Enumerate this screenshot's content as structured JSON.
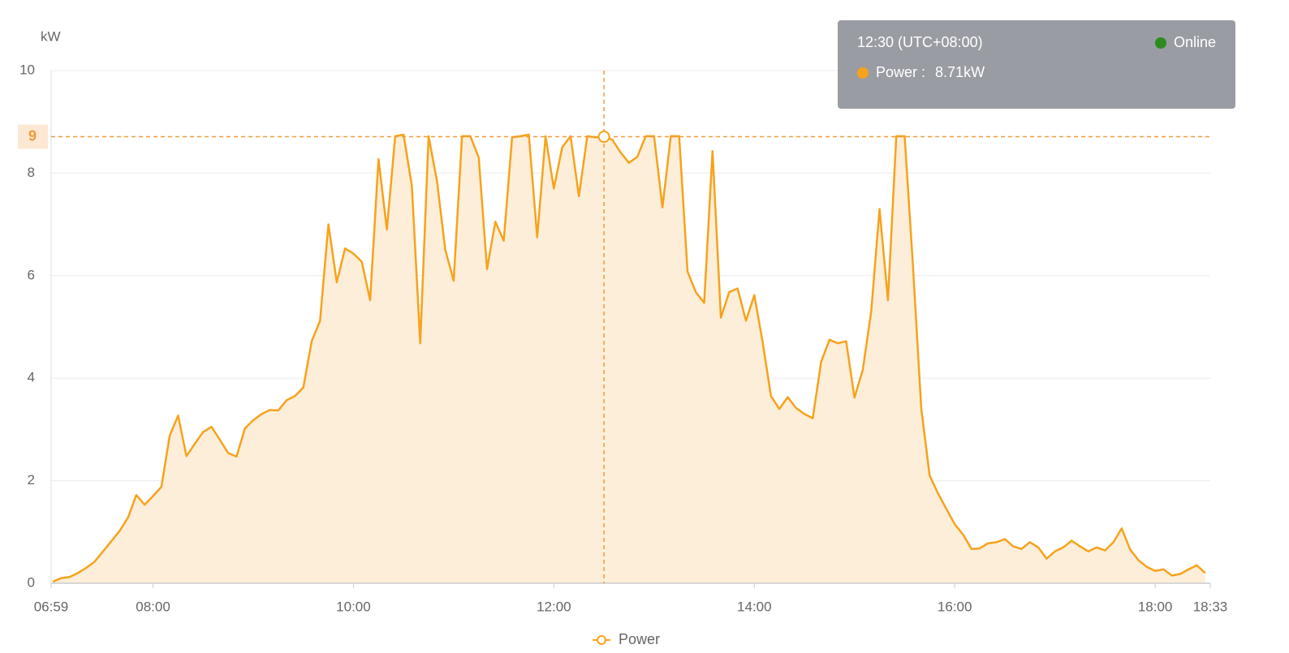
{
  "chart_data": {
    "type": "line",
    "y_label": "kW",
    "x": [
      "07:00",
      "07:05",
      "07:10",
      "07:15",
      "07:20",
      "07:25",
      "07:30",
      "07:35",
      "07:40",
      "07:45",
      "07:50",
      "07:55",
      "08:00",
      "08:05",
      "08:10",
      "08:15",
      "08:20",
      "08:25",
      "08:30",
      "08:35",
      "08:40",
      "08:45",
      "08:50",
      "08:55",
      "09:00",
      "09:05",
      "09:10",
      "09:15",
      "09:20",
      "09:25",
      "09:30",
      "09:35",
      "09:40",
      "09:45",
      "09:50",
      "09:55",
      "10:00",
      "10:05",
      "10:10",
      "10:15",
      "10:20",
      "10:25",
      "10:30",
      "10:35",
      "10:40",
      "10:45",
      "10:50",
      "10:55",
      "11:00",
      "11:05",
      "11:10",
      "11:15",
      "11:20",
      "11:25",
      "11:30",
      "11:35",
      "11:40",
      "11:45",
      "11:50",
      "11:55",
      "12:00",
      "12:05",
      "12:10",
      "12:15",
      "12:20",
      "12:25",
      "12:30",
      "12:35",
      "12:40",
      "12:45",
      "12:50",
      "12:55",
      "13:00",
      "13:05",
      "13:10",
      "13:15",
      "13:20",
      "13:25",
      "13:30",
      "13:35",
      "13:40",
      "13:45",
      "13:50",
      "13:55",
      "14:00",
      "14:05",
      "14:10",
      "14:15",
      "14:20",
      "14:25",
      "14:30",
      "14:35",
      "14:40",
      "14:45",
      "14:50",
      "14:55",
      "15:00",
      "15:05",
      "15:10",
      "15:15",
      "15:20",
      "15:25",
      "15:30",
      "15:35",
      "15:40",
      "15:45",
      "15:50",
      "15:55",
      "16:00",
      "16:05",
      "16:10",
      "16:15",
      "16:20",
      "16:25",
      "16:30",
      "16:35",
      "16:40",
      "16:45",
      "16:50",
      "16:55",
      "17:00",
      "17:05",
      "17:10",
      "17:15",
      "17:20",
      "17:25",
      "17:30",
      "17:35",
      "17:40",
      "17:45",
      "17:50",
      "17:55",
      "18:00",
      "18:05",
      "18:10",
      "18:15",
      "18:20",
      "18:25",
      "18:30"
    ],
    "series": [
      {
        "name": "Power",
        "color": "#f7a21b",
        "fill": "#fdeed9",
        "values": [
          0.03,
          0.1,
          0.12,
          0.2,
          0.3,
          0.42,
          0.62,
          0.82,
          1.02,
          1.28,
          1.72,
          1.53,
          1.7,
          1.88,
          2.88,
          3.27,
          2.48,
          2.72,
          2.95,
          3.05,
          2.8,
          2.54,
          2.47,
          3.02,
          3.18,
          3.3,
          3.38,
          3.37,
          3.57,
          3.65,
          3.82,
          4.72,
          5.12,
          7.0,
          5.87,
          6.53,
          6.43,
          6.27,
          5.52,
          8.27,
          6.9,
          8.72,
          8.75,
          7.75,
          4.68,
          8.72,
          7.85,
          6.5,
          5.9,
          8.72,
          8.72,
          8.3,
          6.13,
          7.05,
          6.68,
          8.7,
          8.72,
          8.75,
          6.75,
          8.72,
          7.7,
          8.5,
          8.72,
          7.55,
          8.72,
          8.7,
          8.71,
          8.65,
          8.4,
          8.2,
          8.32,
          8.72,
          8.72,
          7.33,
          8.72,
          8.72,
          6.08,
          5.68,
          5.47,
          8.43,
          5.18,
          5.68,
          5.75,
          5.12,
          5.62,
          4.7,
          3.65,
          3.4,
          3.63,
          3.42,
          3.3,
          3.22,
          4.32,
          4.75,
          4.68,
          4.72,
          3.62,
          4.17,
          5.3,
          7.3,
          5.52,
          8.72,
          8.72,
          6.2,
          3.4,
          2.1,
          1.75,
          1.45,
          1.15,
          0.95,
          0.67,
          0.68,
          0.78,
          0.8,
          0.86,
          0.72,
          0.67,
          0.8,
          0.7,
          0.48,
          0.62,
          0.7,
          0.83,
          0.72,
          0.62,
          0.7,
          0.64,
          0.8,
          1.07,
          0.66,
          0.45,
          0.32,
          0.24,
          0.27,
          0.15,
          0.18,
          0.27,
          0.35,
          0.2
        ]
      }
    ],
    "xlim": [
      "06:59",
      "18:33"
    ],
    "xticks": [
      "06:59",
      "08:00",
      "10:00",
      "12:00",
      "14:00",
      "16:00",
      "18:00",
      "18:33"
    ],
    "ylim": [
      0,
      10
    ],
    "yticks": [
      0,
      2,
      4,
      6,
      8,
      10
    ],
    "grid": true,
    "legend": "bottom",
    "crosshair": {
      "x": "12:30",
      "y": {
        "value": 8.71,
        "label": "9"
      },
      "color": "#f39a3a"
    },
    "tooltip": {
      "time": "12:30 (UTC+08:00)",
      "status": "Online",
      "status_color": "#2e8b1e",
      "series_label": "Power :",
      "value": 8.71,
      "value_label": "8.71kW"
    }
  }
}
